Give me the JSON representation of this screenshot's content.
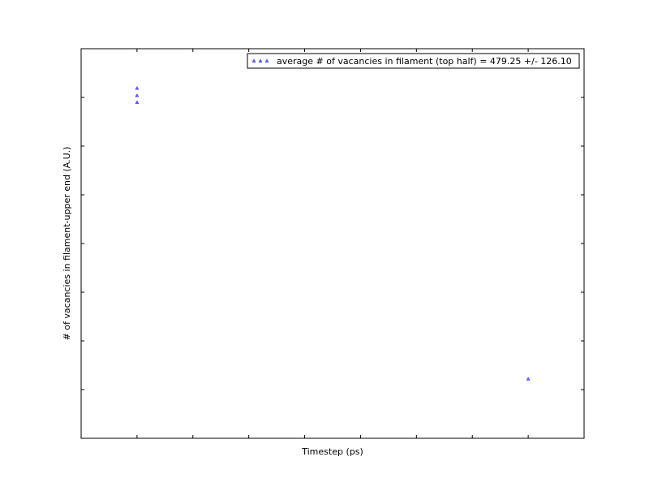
{
  "chart_data": {
    "type": "scatter",
    "title": "",
    "xlabel": "Timestep (ps)",
    "ylabel": "# of vacancies in filament-upper end (A.U.)",
    "xlim": [
      0,
      9
    ],
    "ylim": [
      0,
      8
    ],
    "x_tick_labels": [],
    "y_tick_labels": [],
    "grid": false,
    "legend_position": "top-right",
    "series": [
      {
        "name": "average # of vacancies in filament (top half) = 479.25 +/- 126.10",
        "marker": "triangle",
        "color": "#0000ff",
        "points": [
          {
            "x": 1,
            "y": 7.19
          },
          {
            "x": 1,
            "y": 7.04
          },
          {
            "x": 1,
            "y": 6.9
          },
          {
            "x": 8,
            "y": 1.22
          }
        ]
      }
    ]
  }
}
